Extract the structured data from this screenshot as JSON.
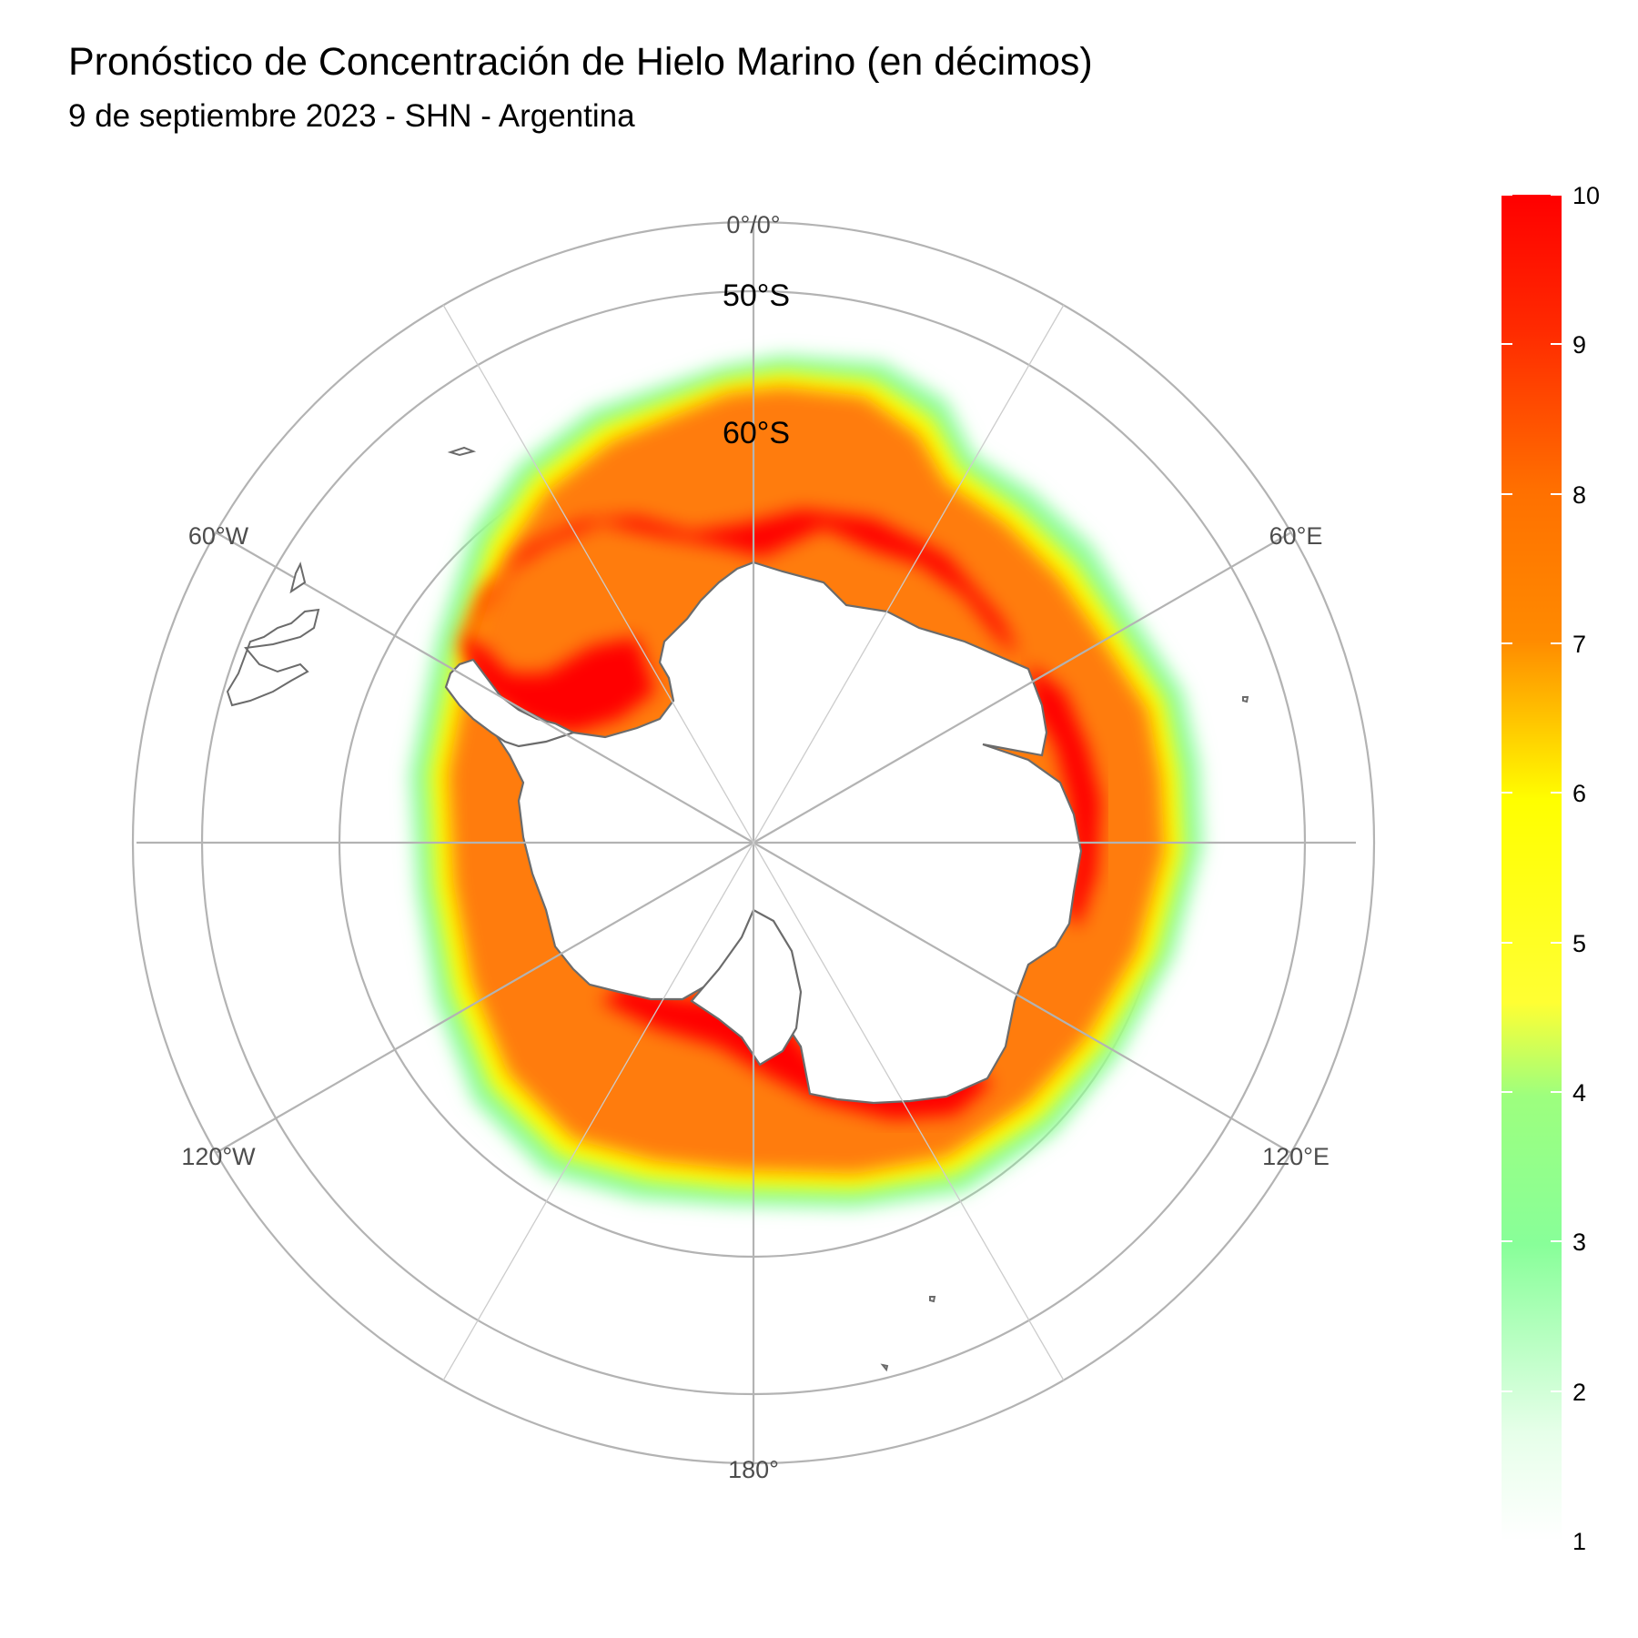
{
  "title": "Pronóstico de Concentración de Hielo Marino (en décimos)",
  "subtitle": "9 de septiembre 2023 - SHN - Argentina",
  "map": {
    "projection": "south polar stereographic",
    "longitude_labels": [
      "0°/0°",
      "60°E",
      "120°E",
      "180°",
      "120°W",
      "60°W"
    ],
    "latitude_labels": [
      "50°S",
      "60°S"
    ]
  },
  "legend": {
    "min": 1,
    "max": 10,
    "ticks": [
      "10",
      "9",
      "8",
      "7",
      "6",
      "5",
      "4",
      "3",
      "2",
      "1"
    ],
    "colors": [
      "#ffffff",
      "#88ff99",
      "#ffff00",
      "#ff8000",
      "#ff0000"
    ]
  }
}
